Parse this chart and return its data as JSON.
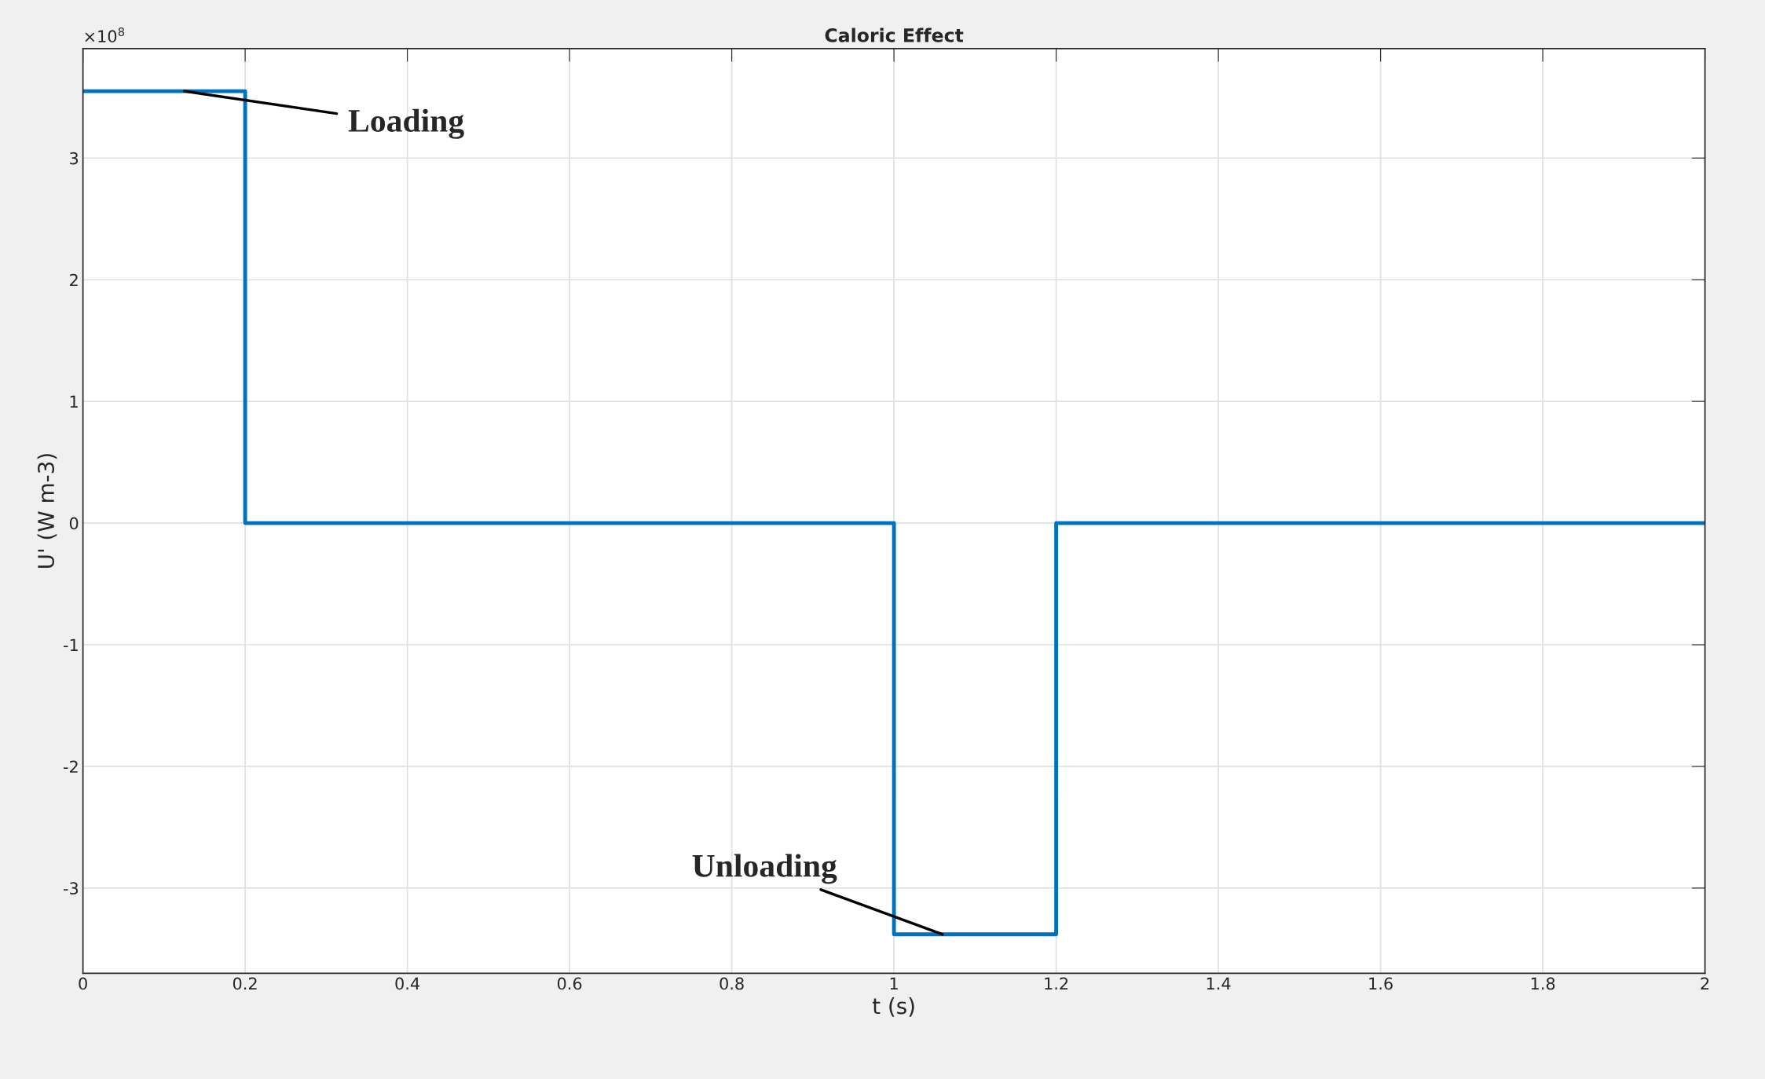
{
  "chart_data": {
    "type": "step",
    "title": "Caloric Effect",
    "xlabel": "t (s)",
    "ylabel": "U' (W m-3)",
    "x": [
      0,
      0.2,
      1,
      1.2,
      2
    ],
    "series": [
      {
        "color": "#0072bd",
        "values": [
          3.55,
          0,
          -3.38,
          0,
          0
        ]
      }
    ],
    "xlim": [
      0,
      2
    ],
    "xticks": [
      0,
      0.2,
      0.4,
      0.6,
      0.8,
      1,
      1.2,
      1.4,
      1.6,
      1.8,
      2
    ],
    "ylim": [
      -3.7,
      3.9
    ],
    "yticks": [
      -3,
      -2,
      -1,
      0,
      1,
      2,
      3
    ],
    "grid": true,
    "annotations": [
      "×10$^{8}$",
      {
        "text": "Loading",
        "x": 0.125,
        "y": 3.55
      },
      {
        "text": "Unloading",
        "x": 1.06,
        "y": -3.38
      }
    ]
  }
}
